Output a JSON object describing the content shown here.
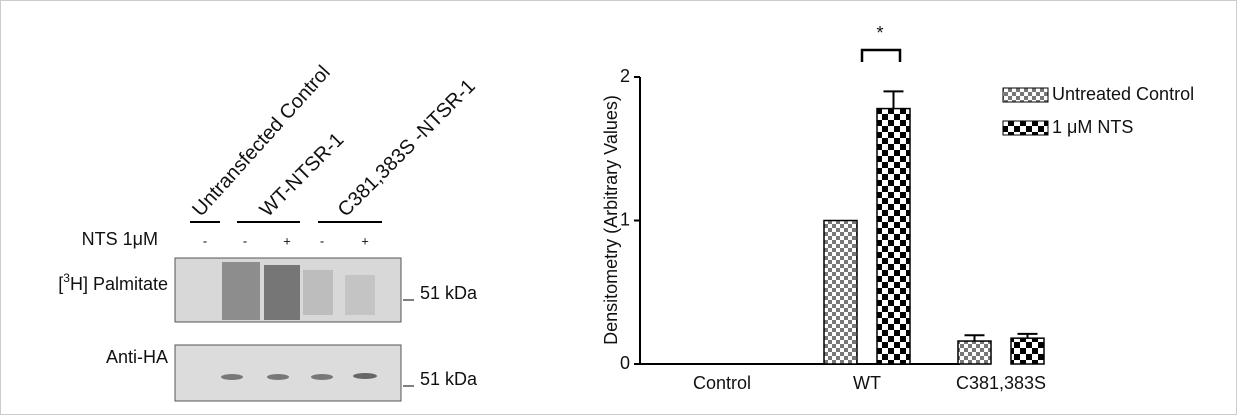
{
  "blot": {
    "lanes": [
      "Untransfected Control",
      "WT-NTSR-1",
      "C381,383S -NTSR-1"
    ],
    "treatment_label": "NTS  1μM",
    "lane_signs": [
      "-",
      "-",
      "+",
      "-",
      "+"
    ],
    "palmitate_label": {
      "pre": "[",
      "sup": "3",
      "post": "H] Palmitate"
    },
    "anti_ha_label": "Anti-HA",
    "marker_labels": [
      "51 kDa",
      "51 kDa"
    ]
  },
  "chart_data": {
    "type": "bar",
    "y_label": "Densitometry (Arbitrary Values)",
    "categories": [
      "Control",
      "WT",
      "C381,383S"
    ],
    "series": [
      {
        "name": "Untreated Control",
        "color": "#777777",
        "values": [
          0,
          1,
          0.16
        ],
        "errors": [
          0,
          0,
          0.04
        ]
      },
      {
        "name": "1 μM NTS",
        "color": "#000000",
        "values": [
          0,
          1.78,
          0.18
        ],
        "errors": [
          0,
          0.12,
          0.03
        ]
      }
    ],
    "ylim": [
      0,
      2
    ],
    "yticks": [
      0,
      1,
      2
    ],
    "annotation": "*"
  }
}
